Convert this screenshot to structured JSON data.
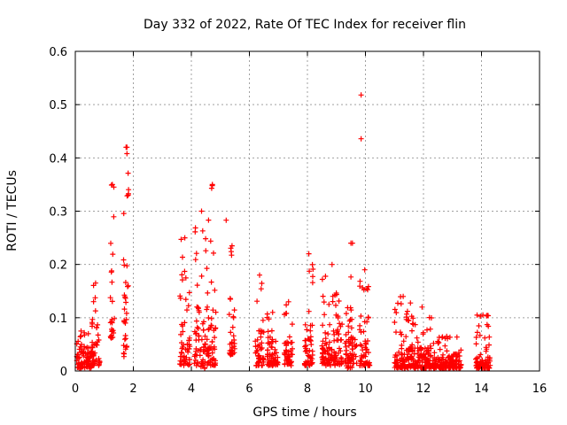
{
  "chart_data": {
    "type": "scatter",
    "title": "Day 332 of 2022, Rate Of TEC Index for receiver flin",
    "xlabel": "GPS time / hours",
    "ylabel": "ROTI / TECUs",
    "xlim": [
      0,
      16
    ],
    "ylim": [
      0,
      0.6
    ],
    "xticks": [
      0,
      2,
      4,
      6,
      8,
      10,
      12,
      14,
      16
    ],
    "yticks": [
      0,
      0.1,
      0.2,
      0.3,
      0.4,
      0.5,
      0.6
    ],
    "grid": true,
    "marker": "+",
    "color": "#ff0000",
    "clusters": [
      {
        "x_start": 0.05,
        "x_end": 0.35,
        "y_base": 0.005,
        "y_spread": 0.05,
        "y_max": 0.075
      },
      {
        "x_start": 0.35,
        "x_end": 0.55,
        "y_base": 0.005,
        "y_spread": 0.05,
        "y_max": 0.07
      },
      {
        "x_start": 0.55,
        "x_end": 0.85,
        "y_base": 0.01,
        "y_spread": 0.09,
        "y_max": 0.165
      },
      {
        "x_start": 1.2,
        "x_end": 1.35,
        "y_base": 0.06,
        "y_spread": 0.1,
        "y_max": 0.35
      },
      {
        "x_start": 1.65,
        "x_end": 1.85,
        "y_base": 0.02,
        "y_spread": 0.2,
        "y_max": 0.42
      },
      {
        "x_start": 3.6,
        "x_end": 3.95,
        "y_base": 0.01,
        "y_spread": 0.08,
        "y_max": 0.25
      },
      {
        "x_start": 4.1,
        "x_end": 4.6,
        "y_base": 0.005,
        "y_spread": 0.2,
        "y_max": 0.3
      },
      {
        "x_start": 4.6,
        "x_end": 4.85,
        "y_base": 0.01,
        "y_spread": 0.15,
        "y_max": 0.35
      },
      {
        "x_start": 5.3,
        "x_end": 5.5,
        "y_base": 0.03,
        "y_spread": 0.12,
        "y_max": 0.235
      },
      {
        "x_start": 6.2,
        "x_end": 6.5,
        "y_base": 0.01,
        "y_spread": 0.08,
        "y_max": 0.18
      },
      {
        "x_start": 6.6,
        "x_end": 7.0,
        "y_base": 0.01,
        "y_spread": 0.07,
        "y_max": 0.11
      },
      {
        "x_start": 7.2,
        "x_end": 7.5,
        "y_base": 0.01,
        "y_spread": 0.06,
        "y_max": 0.13
      },
      {
        "x_start": 7.9,
        "x_end": 8.2,
        "y_base": 0.01,
        "y_spread": 0.08,
        "y_max": 0.22
      },
      {
        "x_start": 8.5,
        "x_end": 9.2,
        "y_base": 0.01,
        "y_spread": 0.09,
        "y_max": 0.2
      },
      {
        "x_start": 9.3,
        "x_end": 9.7,
        "y_base": 0.005,
        "y_spread": 0.1,
        "y_max": 0.24
      },
      {
        "x_start": 9.8,
        "x_end": 10.15,
        "y_base": 0.01,
        "y_spread": 0.1,
        "y_max": 0.19
      },
      {
        "x_start": 11.0,
        "x_end": 11.6,
        "y_base": 0.005,
        "y_spread": 0.05,
        "y_max": 0.14
      },
      {
        "x_start": 11.6,
        "x_end": 12.3,
        "y_base": 0.005,
        "y_spread": 0.05,
        "y_max": 0.12
      },
      {
        "x_start": 12.3,
        "x_end": 13.3,
        "y_base": 0.005,
        "y_spread": 0.03,
        "y_max": 0.065
      },
      {
        "x_start": 13.8,
        "x_end": 14.3,
        "y_base": 0.005,
        "y_spread": 0.03,
        "y_max": 0.105
      }
    ],
    "outliers": [
      {
        "x": 9.85,
        "y": 0.518
      },
      {
        "x": 9.85,
        "y": 0.436
      },
      {
        "x": 1.78,
        "y": 0.42
      },
      {
        "x": 1.78,
        "y": 0.408
      },
      {
        "x": 1.25,
        "y": 0.349
      },
      {
        "x": 4.72,
        "y": 0.348
      },
      {
        "x": 4.7,
        "y": 0.343
      },
      {
        "x": 5.2,
        "y": 0.283
      },
      {
        "x": 3.65,
        "y": 0.247
      },
      {
        "x": 9.55,
        "y": 0.24
      }
    ]
  }
}
